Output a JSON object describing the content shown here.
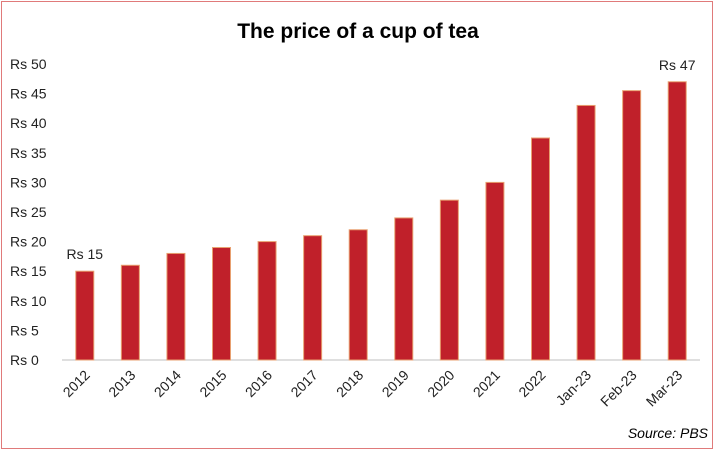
{
  "chart_data": {
    "type": "bar",
    "title": "The price of a cup of tea",
    "source": "Source: PBS",
    "categories": [
      "2012",
      "2013",
      "2014",
      "2015",
      "2016",
      "2017",
      "2018",
      "2019",
      "2020",
      "2021",
      "2022",
      "Jan-23",
      "Feb-23",
      "Mar-23"
    ],
    "values": [
      15,
      16,
      18,
      19,
      20,
      21,
      22,
      24,
      27,
      30,
      37.5,
      43,
      45.5,
      47
    ],
    "y_tick_labels": [
      "Rs 0",
      "Rs 5",
      "Rs 10",
      "Rs 15",
      "Rs 20",
      "Rs 25",
      "Rs 30",
      "Rs 35",
      "Rs 40",
      "Rs 45",
      "Rs 50"
    ],
    "y_ticks": [
      0,
      5,
      10,
      15,
      20,
      25,
      30,
      35,
      40,
      45,
      50
    ],
    "ylim": [
      0,
      50
    ],
    "data_labels": [
      {
        "index": 0,
        "text": "Rs 15"
      },
      {
        "index": 13,
        "text": "Rs 47"
      }
    ],
    "grid": false,
    "bar_color": "#c0202a",
    "bar_edge_color": "#e8a070"
  }
}
